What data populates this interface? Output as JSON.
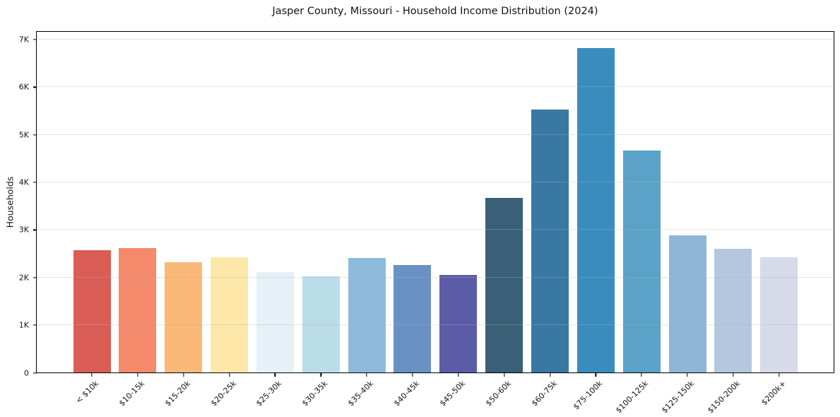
{
  "figure": {
    "background": "#ffffff"
  },
  "chart_data": {
    "type": "bar",
    "title": "Jasper County, Missouri - Household Income Distribution (2024)",
    "xlabel": "",
    "ylabel": "Households",
    "categories": [
      "< $10k",
      "$10-15k",
      "$15-20k",
      "$20-25k",
      "$25-30k",
      "$30-35k",
      "$35-40k",
      "$40-45k",
      "$45-50k",
      "$50-60k",
      "$60-75k",
      "$75-100k",
      "$100-125k",
      "$125-150k",
      "$150-200k",
      "$200k+"
    ],
    "values": [
      2580,
      2620,
      2320,
      2430,
      2120,
      2020,
      2410,
      2270,
      2050,
      3670,
      5530,
      6820,
      4670,
      2890,
      2600,
      2420
    ],
    "bar_colors": [
      "#d95d55",
      "#f4896b",
      "#fbb977",
      "#fde7a9",
      "#e5f1f6",
      "#bbdde9",
      "#8ebbdb",
      "#6a91c4",
      "#5c5ba8",
      "#3a6077",
      "#3878a3",
      "#3b8cbe",
      "#5aa2c8",
      "#8fb6d6",
      "#b5c7de",
      "#d7dae8"
    ],
    "ytick_labels": [
      "0",
      "1K",
      "2K",
      "3K",
      "4K",
      "5K",
      "6K",
      "7K"
    ],
    "ytick_values": [
      0,
      1000,
      2000,
      3000,
      4000,
      5000,
      6000,
      7000
    ],
    "ylim": [
      0,
      7170
    ],
    "grid": "horizontal-light",
    "legend": "none",
    "axis_color": "#000000",
    "text_color": "#141414"
  }
}
